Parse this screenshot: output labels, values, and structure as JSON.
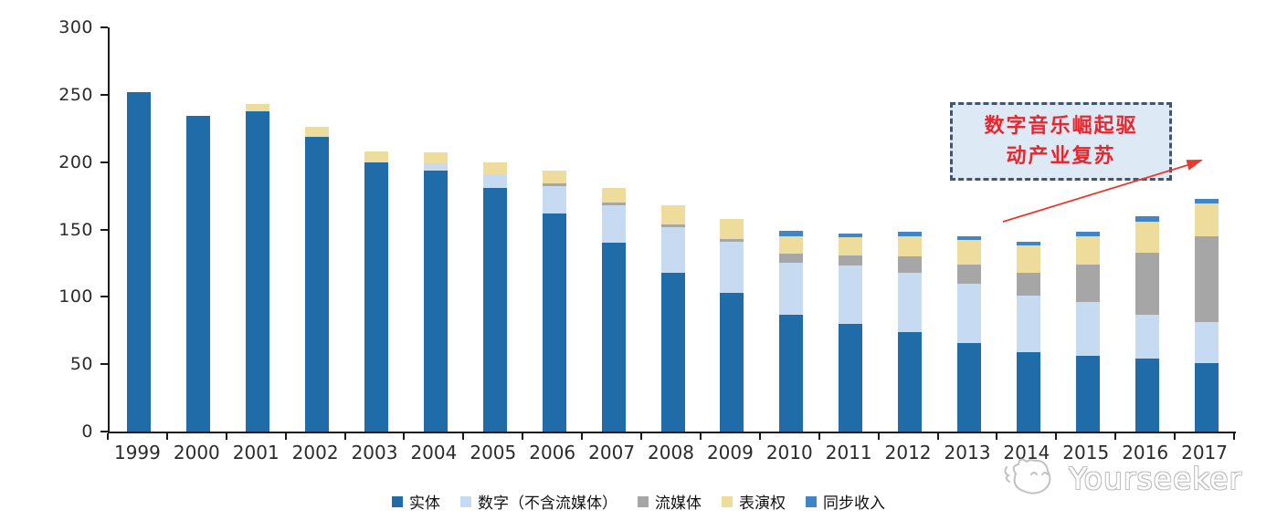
{
  "chart_data": {
    "type": "bar",
    "stacked": true,
    "title": "",
    "xlabel": "",
    "ylabel": "",
    "categories": [
      "1999",
      "2000",
      "2001",
      "2002",
      "2003",
      "2004",
      "2005",
      "2006",
      "2007",
      "2008",
      "2009",
      "2010",
      "2011",
      "2012",
      "2013",
      "2014",
      "2015",
      "2016",
      "2017"
    ],
    "series": [
      {
        "name": "实体",
        "color": "#1F6CA9",
        "values": [
          252,
          234,
          238,
          219,
          200,
          194,
          181,
          162,
          140,
          118,
          103,
          87,
          80,
          74,
          66,
          59,
          56,
          54,
          51
        ]
      },
      {
        "name": "数字（不含流媒体）",
        "color": "#C6DBF1",
        "values": [
          0,
          0,
          0,
          0,
          0,
          5,
          10,
          20,
          28,
          34,
          38,
          38,
          43,
          44,
          44,
          42,
          40,
          33,
          30
        ]
      },
      {
        "name": "流媒体",
        "color": "#A6A6A6",
        "values": [
          0,
          0,
          0,
          0,
          0,
          0,
          0,
          2,
          2,
          2,
          2,
          7,
          8,
          12,
          14,
          17,
          28,
          46,
          64
        ]
      },
      {
        "name": "表演权",
        "color": "#EDDC9C",
        "values": [
          0,
          0,
          5,
          7,
          8,
          8,
          9,
          10,
          11,
          14,
          15,
          13,
          13,
          15,
          18,
          20,
          21,
          23,
          24
        ]
      },
      {
        "name": "同步收入",
        "color": "#4285C4",
        "values": [
          0,
          0,
          0,
          0,
          0,
          0,
          0,
          0,
          0,
          0,
          0,
          4,
          3,
          3,
          3,
          3,
          3,
          4,
          4
        ]
      }
    ],
    "totals": [
      252,
      234,
      243,
      226,
      208,
      207,
      200,
      194,
      181,
      168,
      158,
      149,
      147,
      148,
      145,
      141,
      148,
      160,
      173
    ],
    "ylim": [
      0,
      300
    ],
    "yticks": [
      0,
      50,
      100,
      150,
      200,
      250,
      300
    ],
    "grid": false,
    "legend_position": "bottom",
    "axis_color": "#1a1a1a",
    "label_color": "#2b2b2b"
  },
  "annotation": {
    "line1": "数字音乐崛起驱",
    "line2": "动产业复苏",
    "text_color": "#E8262B",
    "box_fill": "#DEE9F6",
    "box_border": "#44546A",
    "arrow_color": "#E8392F"
  },
  "watermark": {
    "text": "Yourseeker"
  }
}
